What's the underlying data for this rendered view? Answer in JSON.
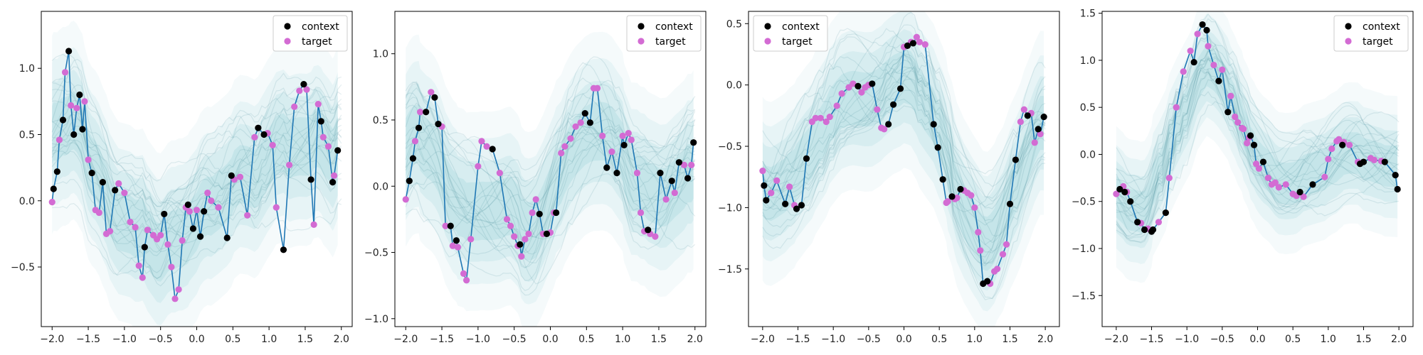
{
  "colors": {
    "mean_line": "#1f77b4",
    "context": "#000000",
    "target": "#d36bd3",
    "band": "#3aa6b9",
    "sample": "#2e7e8e"
  },
  "legend": {
    "context_label": "context",
    "target_label": "target"
  },
  "chart_data": [
    {
      "type": "scatter",
      "xlim": [
        -2.15,
        2.15
      ],
      "ylim": [
        -0.95,
        1.43
      ],
      "xticks": [
        -2.0,
        -1.5,
        -1.0,
        -0.5,
        0.0,
        0.5,
        1.0,
        1.5,
        2.0
      ],
      "yticks": [
        -0.5,
        0.0,
        0.5,
        1.0
      ],
      "legend_position": "upper right",
      "title": "",
      "xlabel": "",
      "ylabel": "",
      "series": [
        {
          "name": "context",
          "x": [
            -1.98,
            -1.93,
            -1.85,
            -1.77,
            -1.7,
            -1.62,
            -1.58,
            -1.45,
            -1.3,
            -1.13,
            -0.72,
            -0.45,
            -0.12,
            -0.05,
            0.05,
            0.1,
            0.42,
            0.48,
            0.85,
            0.93,
            1.2,
            1.48,
            1.58,
            1.72,
            1.88,
            1.95
          ],
          "y": [
            0.09,
            0.22,
            0.61,
            1.13,
            0.5,
            0.8,
            0.54,
            0.21,
            0.14,
            0.08,
            -0.35,
            -0.1,
            -0.03,
            -0.21,
            -0.27,
            -0.08,
            -0.28,
            0.19,
            0.55,
            0.5,
            -0.37,
            0.88,
            0.16,
            0.6,
            0.14,
            0.38
          ]
        },
        {
          "name": "target",
          "x": [
            -2.0,
            -1.9,
            -1.82,
            -1.74,
            -1.66,
            -1.55,
            -1.5,
            -1.4,
            -1.35,
            -1.25,
            -1.2,
            -1.08,
            -1.0,
            -0.92,
            -0.85,
            -0.8,
            -0.75,
            -0.68,
            -0.6,
            -0.55,
            -0.5,
            -0.4,
            -0.35,
            -0.3,
            -0.25,
            -0.2,
            -0.15,
            -0.1,
            0.0,
            0.15,
            0.2,
            0.3,
            0.52,
            0.6,
            0.7,
            0.8,
            0.98,
            1.05,
            1.1,
            1.28,
            1.35,
            1.42,
            1.52,
            1.62,
            1.68,
            1.75,
            1.82,
            1.9
          ],
          "y": [
            -0.01,
            0.46,
            0.97,
            0.72,
            0.7,
            0.75,
            0.31,
            -0.07,
            -0.09,
            -0.25,
            -0.23,
            0.13,
            0.06,
            -0.16,
            -0.2,
            -0.49,
            -0.58,
            -0.22,
            -0.26,
            -0.29,
            -0.26,
            -0.33,
            -0.5,
            -0.74,
            -0.67,
            -0.3,
            -0.05,
            -0.08,
            -0.07,
            0.06,
            0.0,
            -0.05,
            0.16,
            0.18,
            -0.11,
            0.48,
            0.51,
            0.42,
            -0.05,
            0.27,
            0.71,
            0.83,
            0.84,
            -0.18,
            0.73,
            0.48,
            0.41,
            0.19
          ]
        }
      ]
    },
    {
      "type": "scatter",
      "xlim": [
        -2.15,
        2.15
      ],
      "ylim": [
        -1.06,
        1.32
      ],
      "xticks": [
        -2.0,
        -1.5,
        -1.0,
        -0.5,
        0.0,
        0.5,
        1.0,
        1.5,
        2.0
      ],
      "yticks": [
        -1.0,
        -0.5,
        0.0,
        0.5,
        1.0
      ],
      "legend_position": "upper right",
      "title": "",
      "xlabel": "",
      "ylabel": "",
      "series": [
        {
          "name": "context",
          "x": [
            -1.95,
            -1.9,
            -1.82,
            -1.72,
            -1.6,
            -1.55,
            -1.38,
            -1.3,
            -0.8,
            -0.42,
            -0.15,
            -0.05,
            0.08,
            0.48,
            0.55,
            0.78,
            0.92,
            1.02,
            1.35,
            1.52,
            1.68,
            1.78,
            1.9,
            1.98
          ],
          "y": [
            0.04,
            0.21,
            0.44,
            0.56,
            0.67,
            0.47,
            -0.3,
            -0.41,
            0.28,
            -0.44,
            -0.21,
            -0.36,
            -0.2,
            0.55,
            0.48,
            0.14,
            0.1,
            0.31,
            -0.33,
            0.1,
            0.04,
            0.18,
            0.06,
            0.33
          ]
        },
        {
          "name": "target",
          "x": [
            -2.0,
            -1.87,
            -1.8,
            -1.65,
            -1.5,
            -1.45,
            -1.35,
            -1.28,
            -1.2,
            -1.16,
            -1.1,
            -1.0,
            -0.95,
            -0.88,
            -0.7,
            -0.6,
            -0.55,
            -0.5,
            -0.45,
            -0.4,
            -0.35,
            -0.3,
            -0.25,
            -0.2,
            -0.1,
            0.0,
            0.05,
            0.15,
            0.2,
            0.28,
            0.35,
            0.42,
            0.6,
            0.65,
            0.72,
            0.85,
            1.0,
            1.08,
            1.12,
            1.2,
            1.25,
            1.3,
            1.38,
            1.45,
            1.6,
            1.72,
            1.85,
            1.95
          ],
          "y": [
            -0.1,
            0.34,
            0.56,
            0.71,
            0.45,
            -0.3,
            -0.45,
            -0.46,
            -0.66,
            -0.71,
            -0.4,
            0.15,
            0.34,
            0.3,
            0.1,
            -0.25,
            -0.3,
            -0.38,
            -0.45,
            -0.53,
            -0.4,
            -0.36,
            -0.2,
            -0.1,
            -0.36,
            -0.35,
            -0.2,
            0.25,
            0.3,
            0.36,
            0.45,
            0.48,
            0.74,
            0.74,
            0.38,
            0.26,
            0.38,
            0.4,
            0.35,
            0.1,
            -0.2,
            -0.34,
            -0.36,
            -0.38,
            -0.1,
            -0.05,
            0.16,
            0.16
          ]
        }
      ]
    },
    {
      "type": "scatter",
      "xlim": [
        -2.2,
        2.2
      ],
      "ylim": [
        -1.97,
        0.6
      ],
      "xticks": [
        -2.0,
        -1.5,
        -1.0,
        -0.5,
        0.0,
        0.5,
        1.0,
        1.5,
        2.0
      ],
      "yticks": [
        -1.5,
        -1.0,
        -0.5,
        0.0,
        0.5
      ],
      "legend_position": "upper left",
      "title": "",
      "xlabel": "",
      "ylabel": "",
      "series": [
        {
          "name": "context",
          "x": [
            -1.98,
            -1.95,
            -1.68,
            -1.52,
            -1.45,
            -1.38,
            -0.65,
            -0.45,
            -0.22,
            -0.15,
            -0.05,
            0.05,
            0.13,
            0.42,
            0.48,
            0.55,
            0.68,
            0.8,
            1.12,
            1.18,
            1.5,
            1.58,
            1.75,
            1.9,
            1.98
          ],
          "y": [
            -0.82,
            -0.94,
            -0.97,
            -1.01,
            -0.98,
            -0.6,
            -0.01,
            0.01,
            -0.32,
            -0.16,
            -0.03,
            0.32,
            0.34,
            -0.32,
            -0.51,
            -0.77,
            -0.91,
            -0.85,
            -1.62,
            -1.6,
            -0.97,
            -0.61,
            -0.25,
            -0.36,
            -0.26
          ]
        },
        {
          "name": "target",
          "x": [
            -2.0,
            -1.88,
            -1.8,
            -1.62,
            -1.55,
            -1.3,
            -1.25,
            -1.18,
            -1.1,
            -1.05,
            -0.95,
            -0.88,
            -0.78,
            -0.72,
            -0.6,
            -0.55,
            -0.5,
            -0.38,
            -0.32,
            -0.28,
            0.0,
            0.1,
            0.18,
            0.22,
            0.3,
            0.6,
            0.62,
            0.72,
            0.75,
            0.85,
            0.9,
            0.95,
            1.0,
            1.05,
            1.08,
            1.22,
            1.28,
            1.32,
            1.4,
            1.45,
            1.65,
            1.7,
            1.8,
            1.85,
            1.93
          ],
          "y": [
            -0.7,
            -0.88,
            -0.78,
            -0.83,
            -0.98,
            -0.3,
            -0.27,
            -0.27,
            -0.3,
            -0.26,
            -0.17,
            -0.07,
            -0.02,
            0.01,
            -0.06,
            -0.02,
            0.0,
            -0.2,
            -0.35,
            -0.36,
            0.31,
            0.35,
            0.39,
            0.35,
            0.33,
            -0.96,
            -0.95,
            -0.93,
            -0.92,
            -0.86,
            -0.88,
            -0.9,
            -1.0,
            -1.2,
            -1.35,
            -1.62,
            -1.52,
            -1.5,
            -1.38,
            -1.3,
            -0.3,
            -0.2,
            -0.23,
            -0.47,
            -0.4
          ]
        }
      ]
    },
    {
      "type": "scatter",
      "xlim": [
        -2.2,
        2.2
      ],
      "ylim": [
        -1.83,
        1.52
      ],
      "xticks": [
        -2.0,
        -1.5,
        -1.0,
        -0.5,
        0.0,
        0.5,
        1.0,
        1.5,
        2.0
      ],
      "yticks": [
        -1.5,
        -1.0,
        -0.5,
        0.0,
        0.5,
        1.0,
        1.5
      ],
      "legend_position": "upper right",
      "title": "",
      "xlabel": "",
      "ylabel": "",
      "series": [
        {
          "name": "context",
          "x": [
            -1.95,
            -1.88,
            -1.8,
            -1.7,
            -1.6,
            -1.5,
            -1.48,
            -1.3,
            -0.9,
            -0.78,
            -0.72,
            -0.55,
            -0.42,
            -0.1,
            -0.05,
            0.08,
            0.6,
            0.78,
            1.2,
            1.45,
            1.5,
            1.8,
            1.95,
            1.98
          ],
          "y": [
            -0.37,
            -0.4,
            -0.5,
            -0.72,
            -0.8,
            -0.82,
            -0.8,
            -0.62,
            0.98,
            1.38,
            1.32,
            0.78,
            0.45,
            0.2,
            0.1,
            -0.08,
            -0.4,
            -0.32,
            0.1,
            -0.1,
            -0.08,
            -0.08,
            -0.22,
            -0.37
          ]
        },
        {
          "name": "target",
          "x": [
            -2.0,
            -1.9,
            -1.85,
            -1.65,
            -1.55,
            -1.4,
            -1.25,
            -1.15,
            -1.05,
            -0.95,
            -0.85,
            -0.7,
            -0.62,
            -0.5,
            -0.38,
            -0.32,
            -0.28,
            -0.22,
            -0.2,
            -0.15,
            -0.12,
            -0.02,
            0.02,
            0.15,
            0.2,
            0.25,
            0.3,
            0.4,
            0.5,
            0.55,
            0.65,
            0.95,
            1.0,
            1.05,
            1.12,
            1.15,
            1.22,
            1.3,
            1.42,
            1.6,
            1.65,
            1.75
          ],
          "y": [
            -0.42,
            -0.34,
            -0.4,
            -0.73,
            -0.79,
            -0.72,
            -0.25,
            0.5,
            0.88,
            1.1,
            1.28,
            1.15,
            0.95,
            0.9,
            0.62,
            0.4,
            0.34,
            0.28,
            0.27,
            0.12,
            0.18,
            -0.1,
            -0.15,
            -0.25,
            -0.32,
            -0.3,
            -0.35,
            -0.32,
            -0.42,
            -0.44,
            -0.45,
            -0.24,
            -0.05,
            0.06,
            0.14,
            0.16,
            0.13,
            0.1,
            -0.08,
            -0.04,
            -0.06,
            -0.07
          ]
        }
      ]
    }
  ]
}
